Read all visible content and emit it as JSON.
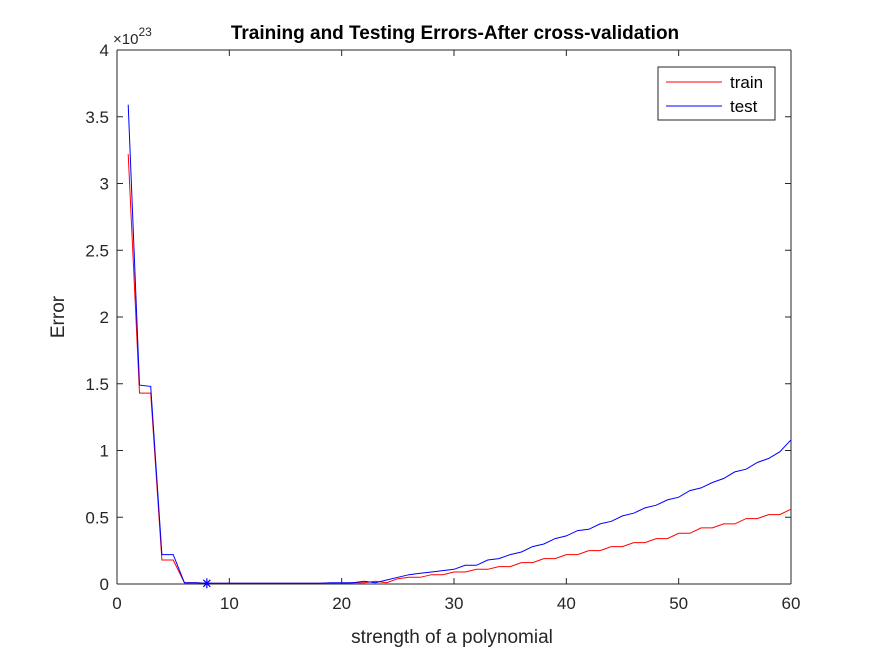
{
  "chart_data": {
    "type": "line",
    "title": "Training and Testing Errors-After cross-validation",
    "xlabel": "strength of a polynomial",
    "ylabel": "Error",
    "y_scale_exponent_base": "×10",
    "y_scale_exponent_power": "23",
    "xlim": [
      0,
      60
    ],
    "ylim": [
      0,
      4
    ],
    "xticks": [
      0,
      10,
      20,
      30,
      40,
      50,
      60
    ],
    "yticks": [
      0,
      0.5,
      1,
      1.5,
      2,
      2.5,
      3,
      3.5,
      4
    ],
    "xtick_labels": [
      "0",
      "10",
      "20",
      "30",
      "40",
      "50",
      "60"
    ],
    "ytick_labels": [
      "0",
      "0.5",
      "1",
      "1.5",
      "2",
      "2.5",
      "3",
      "3.5",
      "4"
    ],
    "grid": false,
    "legend_position": "top-right",
    "series": [
      {
        "name": "train",
        "color": "#ff0000",
        "x": [
          1,
          2,
          3,
          4,
          5,
          6,
          7,
          8,
          9,
          10,
          11,
          12,
          13,
          14,
          15,
          16,
          17,
          18,
          19,
          20,
          21,
          22,
          23,
          24,
          25,
          26,
          27,
          28,
          29,
          30,
          31,
          32,
          33,
          34,
          35,
          36,
          37,
          38,
          39,
          40,
          41,
          42,
          43,
          44,
          45,
          46,
          47,
          48,
          49,
          50,
          51,
          52,
          53,
          54,
          55,
          56,
          57,
          58,
          59,
          60
        ],
        "values": [
          3.22,
          1.43,
          1.43,
          0.18,
          0.18,
          0.01,
          0.01,
          0.005,
          0.005,
          0.005,
          0.005,
          0.005,
          0.005,
          0.005,
          0.005,
          0.005,
          0.005,
          0.005,
          0.005,
          0.005,
          0.01,
          0.01,
          0.02,
          0.01,
          0.04,
          0.05,
          0.05,
          0.07,
          0.07,
          0.09,
          0.09,
          0.11,
          0.11,
          0.13,
          0.13,
          0.16,
          0.16,
          0.19,
          0.19,
          0.22,
          0.22,
          0.25,
          0.25,
          0.28,
          0.28,
          0.31,
          0.31,
          0.34,
          0.34,
          0.38,
          0.38,
          0.42,
          0.42,
          0.45,
          0.45,
          0.49,
          0.49,
          0.52,
          0.52,
          0.56
        ]
      },
      {
        "name": "test",
        "color": "#0000ff",
        "x": [
          1,
          2,
          3,
          4,
          5,
          6,
          7,
          8,
          9,
          10,
          11,
          12,
          13,
          14,
          15,
          16,
          17,
          18,
          19,
          20,
          21,
          22,
          23,
          24,
          25,
          26,
          27,
          28,
          29,
          30,
          31,
          32,
          33,
          34,
          35,
          36,
          37,
          38,
          39,
          40,
          41,
          42,
          43,
          44,
          45,
          46,
          47,
          48,
          49,
          50,
          51,
          52,
          53,
          54,
          55,
          56,
          57,
          58,
          59,
          60
        ],
        "values": [
          3.59,
          1.49,
          1.48,
          0.22,
          0.22,
          0.01,
          0.01,
          0.005,
          0.005,
          0.005,
          0.005,
          0.005,
          0.005,
          0.005,
          0.005,
          0.005,
          0.005,
          0.005,
          0.01,
          0.01,
          0.01,
          0.02,
          0.01,
          0.03,
          0.05,
          0.07,
          0.08,
          0.09,
          0.1,
          0.11,
          0.14,
          0.14,
          0.18,
          0.19,
          0.22,
          0.24,
          0.28,
          0.3,
          0.34,
          0.36,
          0.4,
          0.41,
          0.45,
          0.47,
          0.51,
          0.53,
          0.57,
          0.59,
          0.63,
          0.65,
          0.7,
          0.72,
          0.76,
          0.79,
          0.84,
          0.86,
          0.91,
          0.94,
          0.99,
          1.08
        ]
      }
    ],
    "marker": {
      "x": 8,
      "y": 0.005,
      "symbol": "*",
      "color": "#0000ff"
    }
  }
}
